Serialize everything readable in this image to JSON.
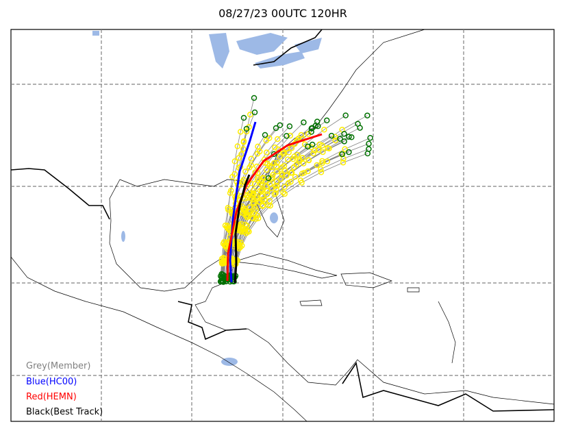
{
  "title": "08/27/23 00UTC 120HR",
  "legend": [
    "Grey(Member)",
    "Blue(HC00)",
    "Red(HEMN)",
    "Black(Best Track)"
  ]
}
